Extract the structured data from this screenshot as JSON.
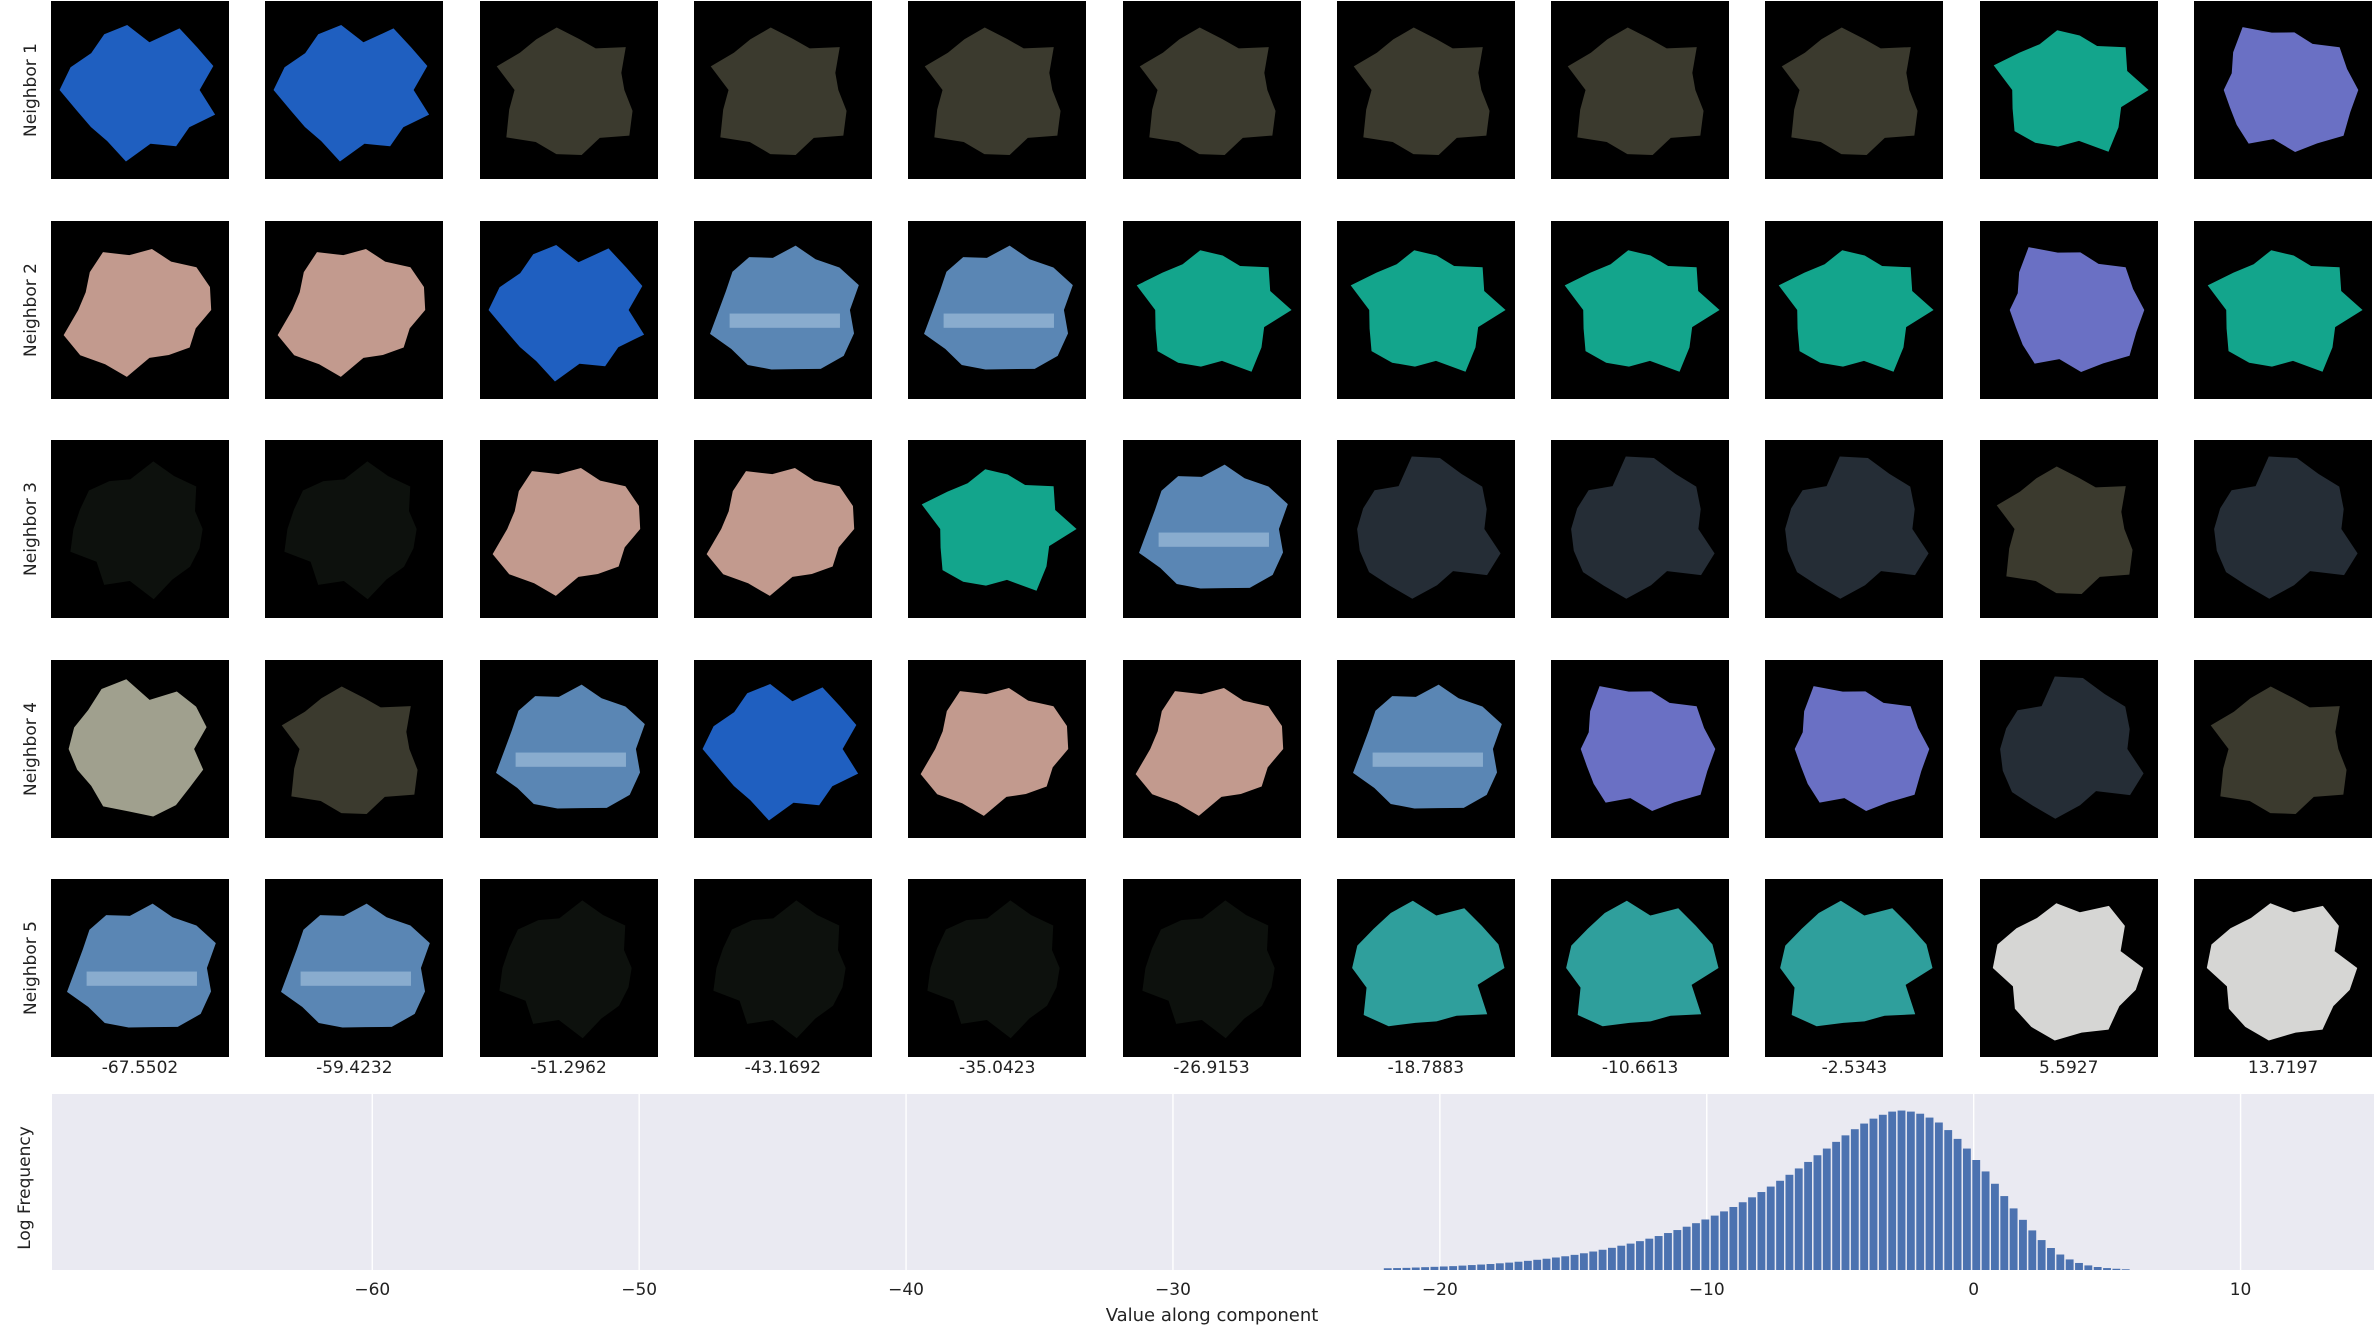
{
  "chart_data": [
    {
      "type": "image-grid",
      "row_labels": [
        "Neighbor 1",
        "Neighbor 2",
        "Neighbor 3",
        "Neighbor 4",
        "Neighbor 5"
      ],
      "column_values": [
        "-67.5502",
        "-59.4232",
        "-51.2962",
        "-43.1692",
        "-35.0423",
        "-26.9153",
        "-18.7883",
        "-10.6613",
        "-2.5343",
        "5.5927",
        "13.7197"
      ],
      "thumbnails": [
        [
          "blue-blob",
          "blue-blob",
          "olive-blob",
          "olive-blob",
          "olive-blob",
          "olive-blob",
          "olive-blob",
          "olive-blob",
          "olive-blob",
          "teal-blob",
          "purple-blob"
        ],
        [
          "pink-blob",
          "pink-blob",
          "blue-blob",
          "striped-blob",
          "striped-blob",
          "teal-blob",
          "teal-blob",
          "teal-blob",
          "teal-blob",
          "purple-blob",
          "teal-blob"
        ],
        [
          "faint-blob",
          "faint-blob",
          "pink-blob",
          "pink-blob",
          "teal-blob",
          "striped-blob",
          "dark-blob",
          "dark-blob",
          "dark-blob",
          "olive-blob",
          "dark-blob"
        ],
        [
          "grey-blob",
          "olive-blob",
          "striped-blob",
          "blue-blob",
          "pink-blob",
          "pink-blob",
          "striped-blob",
          "purple-blob",
          "purple-blob",
          "dark-blob",
          "olive-blob"
        ],
        [
          "striped-blob",
          "striped-blob",
          "faint-blob",
          "faint-blob",
          "faint-blob",
          "faint-blob",
          "cyan-blob",
          "cyan-blob",
          "cyan-blob",
          "white-blob",
          "white-blob"
        ]
      ],
      "blob_colors": {
        "blue-blob": "#1f5fc0",
        "olive-blob": "#3b3a2e",
        "teal-blob": "#13a58c",
        "purple-blob": "#6a70c4",
        "pink-blob": "#c29a8e",
        "striped-blob": "#5a86b4",
        "faint-blob": "#0d110d",
        "dark-blob": "#252d36",
        "grey-blob": "#a0a08e",
        "cyan-blob": "#2f9f9c",
        "white-blob": "#d6d6d4"
      }
    },
    {
      "type": "bar",
      "xlabel": "Value along component",
      "ylabel": "Log Frequency",
      "xlim": [
        -72,
        15
      ],
      "ylim": [
        0,
        1
      ],
      "x_ticks": [
        -60,
        -50,
        -40,
        -30,
        -20,
        -10,
        0,
        10
      ],
      "x_tick_labels": [
        "−60",
        "−50",
        "−40",
        "−30",
        "−20",
        "−10",
        "0",
        "10"
      ],
      "grid": true,
      "bar_color": "#4c72b0",
      "background_color": "#eaeaf2",
      "bin_width": 0.35,
      "bin_starts": [
        -22.1,
        -21.75,
        -21.4,
        -21.05,
        -20.7,
        -20.35,
        -20.0,
        -19.65,
        -19.3,
        -18.95,
        -18.6,
        -18.25,
        -17.9,
        -17.55,
        -17.2,
        -16.85,
        -16.5,
        -16.15,
        -15.8,
        -15.45,
        -15.1,
        -14.75,
        -14.4,
        -14.05,
        -13.7,
        -13.35,
        -13.0,
        -12.65,
        -12.3,
        -11.95,
        -11.6,
        -11.25,
        -10.9,
        -10.55,
        -10.2,
        -9.85,
        -9.5,
        -9.15,
        -8.8,
        -8.45,
        -8.1,
        -7.75,
        -7.4,
        -7.05,
        -6.7,
        -6.35,
        -6.0,
        -5.65,
        -5.3,
        -4.95,
        -4.6,
        -4.25,
        -3.9,
        -3.55,
        -3.2,
        -2.85,
        -2.5,
        -2.15,
        -1.8,
        -1.45,
        -1.1,
        -0.75,
        -0.4,
        -0.05,
        0.3,
        0.65,
        1.0,
        1.35,
        1.7,
        2.05,
        2.4,
        2.75,
        3.1,
        3.45,
        3.8,
        4.15,
        4.5,
        4.85,
        5.2,
        5.55
      ],
      "values": [
        0.01,
        0.011,
        0.012,
        0.014,
        0.016,
        0.018,
        0.02,
        0.022,
        0.025,
        0.028,
        0.031,
        0.034,
        0.038,
        0.042,
        0.047,
        0.052,
        0.058,
        0.064,
        0.071,
        0.078,
        0.086,
        0.095,
        0.105,
        0.115,
        0.126,
        0.138,
        0.15,
        0.164,
        0.178,
        0.193,
        0.21,
        0.227,
        0.246,
        0.266,
        0.287,
        0.309,
        0.333,
        0.358,
        0.385,
        0.413,
        0.443,
        0.474,
        0.507,
        0.541,
        0.577,
        0.614,
        0.652,
        0.69,
        0.728,
        0.765,
        0.8,
        0.832,
        0.86,
        0.882,
        0.9,
        0.906,
        0.9,
        0.888,
        0.866,
        0.838,
        0.795,
        0.745,
        0.69,
        0.625,
        0.56,
        0.49,
        0.42,
        0.35,
        0.285,
        0.225,
        0.17,
        0.125,
        0.088,
        0.06,
        0.04,
        0.026,
        0.017,
        0.011,
        0.007,
        0.004
      ]
    }
  ]
}
